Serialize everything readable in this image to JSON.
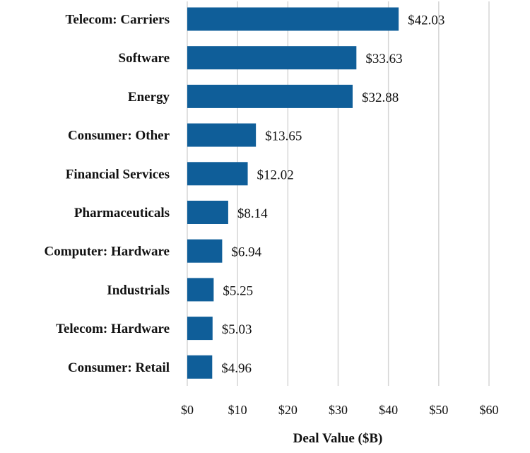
{
  "chart_data": {
    "type": "bar",
    "orientation": "horizontal",
    "categories": [
      "Telecom: Carriers",
      "Software",
      "Energy",
      "Consumer: Other",
      "Financial Services",
      "Pharmaceuticals",
      "Computer: Hardware",
      "Industrials",
      "Telecom: Hardware",
      "Consumer: Retail"
    ],
    "values": [
      42.03,
      33.63,
      32.88,
      13.65,
      12.02,
      8.14,
      6.94,
      5.25,
      5.03,
      4.96
    ],
    "data_labels": [
      "$42.03",
      "$33.63",
      "$32.88",
      "$13.65",
      "$12.02",
      "$8.14",
      "$6.94",
      "$5.25",
      "$5.03",
      "$4.96"
    ],
    "xlabel": "Deal Value ($B)",
    "ylabel": "",
    "xlim": [
      0,
      60
    ],
    "xticks": [
      0,
      10,
      20,
      30,
      40,
      50,
      60
    ],
    "xtick_labels": [
      "$0",
      "$10",
      "$20",
      "$30",
      "$40",
      "$50",
      "$60"
    ],
    "grid": "vertical",
    "bar_color": "#0f5e99"
  }
}
